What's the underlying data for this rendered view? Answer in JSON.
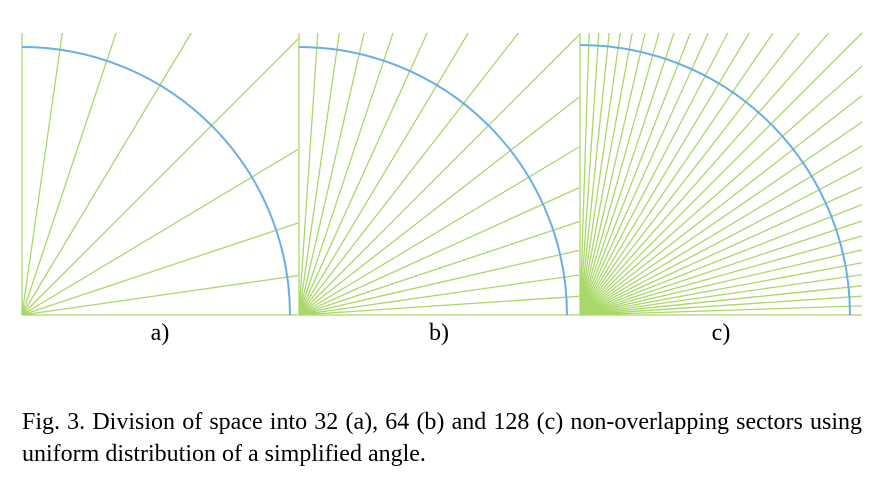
{
  "figure": {
    "panels": [
      {
        "label": "a)",
        "sectors": 32
      },
      {
        "label": "b)",
        "sectors": 64
      },
      {
        "label": "c)",
        "sectors": 128
      }
    ],
    "colors": {
      "ray": "#a8d868",
      "arc": "#6aaee6",
      "axis": "#a8d868",
      "text": "#000000"
    }
  },
  "caption": {
    "text": "Fig. 3. Division of space into 32 (a), 64 (b) and 128 (c) non-overlapping sectors using uniform distribution of a simplified angle."
  }
}
